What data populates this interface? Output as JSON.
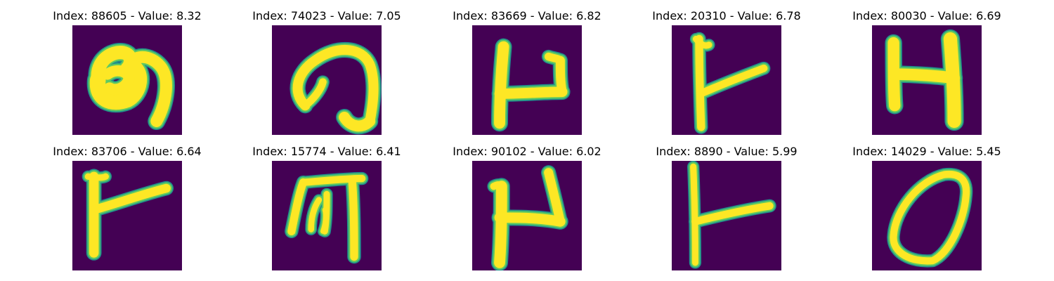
{
  "colors": {
    "background": "#440154",
    "stroke_edge": "#21918c",
    "stroke_mid": "#5ec962",
    "stroke_core": "#fde725"
  },
  "panels": [
    {
      "index": "88605",
      "value": "8.32",
      "title": "Index: 88605 - Value: 8.32",
      "glyph": "swirl-character"
    },
    {
      "index": "74023",
      "value": "7.05",
      "title": "Index: 74023 - Value: 7.05",
      "glyph": "hook-character"
    },
    {
      "index": "83669",
      "value": "6.82",
      "title": "Index: 83669 - Value: 6.82",
      "glyph": "u-shaped-character"
    },
    {
      "index": "20310",
      "value": "6.78",
      "title": "Index: 20310 - Value: 6.78",
      "glyph": "y-shaped-character"
    },
    {
      "index": "80030",
      "value": "6.69",
      "title": "Index: 80030 - Value: 6.69",
      "glyph": "h-shaped-character"
    },
    {
      "index": "83706",
      "value": "6.64",
      "title": "Index: 83706 - Value: 6.64",
      "glyph": "y-shaped-character"
    },
    {
      "index": "15774",
      "value": "6.41",
      "title": "Index: 15774 - Value: 6.41",
      "glyph": "box-character"
    },
    {
      "index": "90102",
      "value": "6.02",
      "title": "Index: 90102 - Value: 6.02",
      "glyph": "u-shaped-character"
    },
    {
      "index": "8890",
      "value": "5.99",
      "title": "Index: 8890 - Value: 5.99",
      "glyph": "y-shaped-character"
    },
    {
      "index": "14029",
      "value": "5.45",
      "title": "Index: 14029 - Value: 5.45",
      "glyph": "oval-character"
    }
  ]
}
